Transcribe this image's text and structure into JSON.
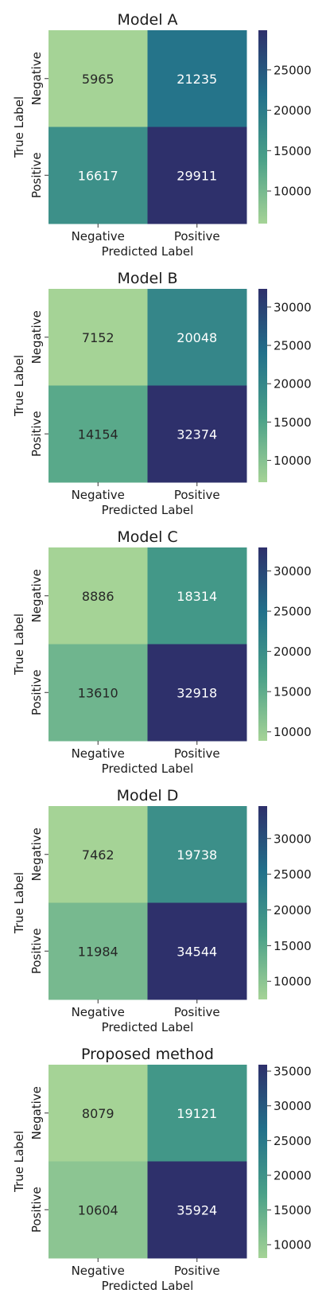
{
  "chart_data": [
    {
      "type": "heatmap",
      "title": "Model A",
      "xlabel": "Predicted Label",
      "ylabel": "True Label",
      "x_categories": [
        "Negative",
        "Positive"
      ],
      "y_categories": [
        "Negative",
        "Positive"
      ],
      "values": [
        [
          5965,
          21235
        ],
        [
          16617,
          29911
        ]
      ],
      "colorbar_ticks": [
        10000,
        15000,
        20000,
        25000
      ],
      "colorbar_ticks_text": [
        "10000",
        "15000",
        "20000",
        "25000"
      ],
      "cells_text": [
        [
          "5965",
          "21235"
        ],
        [
          "16617",
          "29911"
        ]
      ],
      "colormap": "crest",
      "colormap_stops": [
        "#a5d396",
        "#4aa088",
        "#22708a",
        "#2e306b"
      ]
    },
    {
      "type": "heatmap",
      "title": "Model B",
      "xlabel": "Predicted Label",
      "ylabel": "True Label",
      "x_categories": [
        "Negative",
        "Positive"
      ],
      "y_categories": [
        "Negative",
        "Positive"
      ],
      "values": [
        [
          7152,
          20048
        ],
        [
          14154,
          32374
        ]
      ],
      "colorbar_ticks": [
        10000,
        15000,
        20000,
        25000,
        30000
      ],
      "colorbar_ticks_text": [
        "10000",
        "15000",
        "20000",
        "25000",
        "30000"
      ],
      "cells_text": [
        [
          "7152",
          "20048"
        ],
        [
          "14154",
          "32374"
        ]
      ],
      "colormap": "crest",
      "colormap_stops": [
        "#a5d396",
        "#4aa088",
        "#22708a",
        "#2e306b"
      ]
    },
    {
      "type": "heatmap",
      "title": "Model C",
      "xlabel": "Predicted Label",
      "ylabel": "True Label",
      "x_categories": [
        "Negative",
        "Positive"
      ],
      "y_categories": [
        "Negative",
        "Positive"
      ],
      "values": [
        [
          8886,
          18314
        ],
        [
          13610,
          32918
        ]
      ],
      "colorbar_ticks": [
        10000,
        15000,
        20000,
        25000,
        30000
      ],
      "colorbar_ticks_text": [
        "10000",
        "15000",
        "20000",
        "25000",
        "30000"
      ],
      "cells_text": [
        [
          "8886",
          "18314"
        ],
        [
          "13610",
          "32918"
        ]
      ],
      "colormap": "crest",
      "colormap_stops": [
        "#a5d396",
        "#4aa088",
        "#22708a",
        "#2e306b"
      ]
    },
    {
      "type": "heatmap",
      "title": "Model D",
      "xlabel": "Predicted Label",
      "ylabel": "True Label",
      "x_categories": [
        "Negative",
        "Positive"
      ],
      "y_categories": [
        "Negative",
        "Positive"
      ],
      "values": [
        [
          7462,
          19738
        ],
        [
          11984,
          34544
        ]
      ],
      "colorbar_ticks": [
        10000,
        15000,
        20000,
        25000,
        30000
      ],
      "colorbar_ticks_text": [
        "10000",
        "15000",
        "20000",
        "25000",
        "30000"
      ],
      "cells_text": [
        [
          "7462",
          "19738"
        ],
        [
          "11984",
          "34544"
        ]
      ],
      "colormap": "crest",
      "colormap_stops": [
        "#a5d396",
        "#4aa088",
        "#22708a",
        "#2e306b"
      ]
    },
    {
      "type": "heatmap",
      "title": "Proposed method",
      "xlabel": "Predicted Label",
      "ylabel": "True Label",
      "x_categories": [
        "Negative",
        "Positive"
      ],
      "y_categories": [
        "Negative",
        "Positive"
      ],
      "values": [
        [
          8079,
          19121
        ],
        [
          10604,
          35924
        ]
      ],
      "colorbar_ticks": [
        10000,
        15000,
        20000,
        25000,
        30000,
        35000
      ],
      "colorbar_ticks_text": [
        "10000",
        "15000",
        "20000",
        "25000",
        "30000",
        "35000"
      ],
      "cells_text": [
        [
          "8079",
          "19121"
        ],
        [
          "10604",
          "35924"
        ]
      ],
      "colormap": "crest",
      "colormap_stops": [
        "#a5d396",
        "#4aa088",
        "#22708a",
        "#2e306b"
      ]
    }
  ]
}
